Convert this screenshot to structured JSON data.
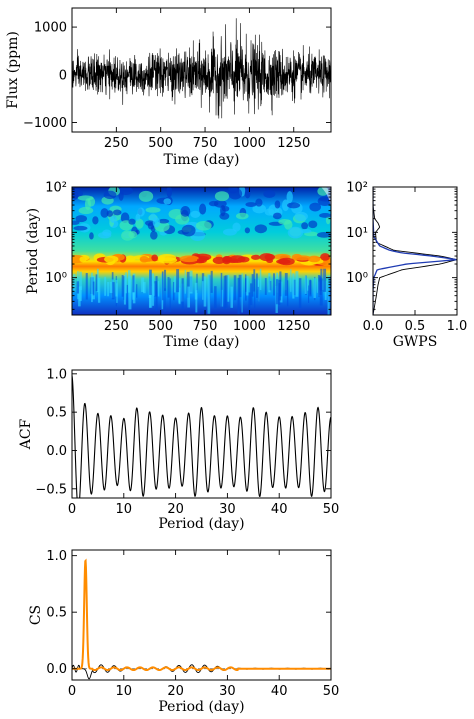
{
  "chart_data": [
    {
      "id": "lightcurve",
      "type": "line",
      "xlabel": "Time (day)",
      "ylabel": "Flux (ppm)",
      "xlim": [
        0,
        1460
      ],
      "ylim": [
        -1200,
        1400
      ],
      "xticks": [
        250,
        500,
        750,
        1000,
        1250
      ],
      "yticks": [
        -1000,
        0,
        1000
      ],
      "ytick_labels": [
        "−1000",
        "0",
        "1000"
      ],
      "series": [
        {
          "color": "#000000",
          "description_values": "dense noisy flux time series, amplitude ~±500 ppm, peaks up to ~1250 ppm near 950 d",
          "x": [
            0,
            100,
            200,
            300,
            400,
            500,
            600,
            700,
            800,
            900,
            950,
            1000,
            1100,
            1200,
            1300,
            1400,
            1460
          ],
          "amplitude": [
            420,
            450,
            480,
            460,
            520,
            560,
            540,
            650,
            800,
            900,
            1000,
            850,
            700,
            600,
            520,
            480,
            450
          ]
        }
      ]
    },
    {
      "id": "wavelet",
      "type": "heatmap",
      "xlabel": "Time (day)",
      "ylabel": "Period (day)",
      "xlim": [
        0,
        1460
      ],
      "ylim": [
        0.15,
        100
      ],
      "yscale": "log",
      "xticks": [
        250,
        500,
        750,
        1000,
        1250
      ],
      "yticks": [
        1,
        10,
        100
      ],
      "ytick_labels": [
        "10⁰",
        "10¹",
        "10²"
      ],
      "colormap": "jet",
      "dominant_period": 2.5
    },
    {
      "id": "gwps",
      "type": "line",
      "xlabel": "GWPS",
      "xlim": [
        0,
        1.0
      ],
      "ylim": [
        0.15,
        100
      ],
      "yscale": "log",
      "xticks": [
        0,
        0.5,
        1.0
      ],
      "xtick_labels": [
        "0.0",
        "0.5",
        "1.0"
      ],
      "yticks": [
        1,
        10,
        100
      ],
      "ytick_labels": [
        "10⁰",
        "10¹",
        "10²"
      ],
      "series": [
        {
          "color": "#000000",
          "period": [
            0.15,
            0.4,
            0.7,
            1.0,
            1.5,
            2.0,
            2.5,
            3.0,
            4.0,
            6.0,
            10,
            13,
            16,
            20,
            40,
            100
          ],
          "power": [
            0.0,
            0.04,
            0.06,
            0.08,
            0.35,
            0.8,
            1.0,
            0.8,
            0.25,
            0.04,
            0.03,
            0.08,
            0.06,
            0.02,
            0.0,
            0.0
          ]
        },
        {
          "color": "#1f3bb3",
          "period": [
            0.15,
            0.5,
            1.0,
            1.5,
            2.0,
            2.5,
            3.0,
            3.5,
            4.0,
            5.0,
            8.0,
            20,
            100
          ],
          "power": [
            0.0,
            0.0,
            0.01,
            0.05,
            0.4,
            1.0,
            0.7,
            0.35,
            0.2,
            0.08,
            0.01,
            0.0,
            0.0
          ]
        }
      ]
    },
    {
      "id": "acf",
      "type": "line",
      "xlabel": "Period (day)",
      "ylabel": "ACF",
      "xlim": [
        0,
        50
      ],
      "ylim": [
        -0.62,
        1.05
      ],
      "xticks": [
        0,
        10,
        20,
        30,
        40,
        50
      ],
      "yticks": [
        -0.5,
        0.0,
        0.5,
        1.0
      ],
      "ytick_labels": [
        "−0.5",
        "0.0",
        "0.5",
        "1.0"
      ],
      "oscillation_period": 2.5,
      "series": [
        {
          "color": "#000000",
          "description_values": "damped-then-steady oscillation with period ~2.5 d, peaks ~0.45–0.6, troughs ~−0.4 to −0.55"
        }
      ]
    },
    {
      "id": "cs",
      "type": "line",
      "xlabel": "Period (day)",
      "ylabel": "CS",
      "xlim": [
        0,
        50
      ],
      "ylim": [
        -0.1,
        1.05
      ],
      "xticks": [
        0,
        10,
        20,
        30,
        40,
        50
      ],
      "yticks": [
        0.0,
        0.5,
        1.0
      ],
      "ytick_labels": [
        "0.0",
        "0.5",
        "1.0"
      ],
      "series": [
        {
          "color": "#000000",
          "description_values": "small ripple around 0 with dip near 3 d"
        },
        {
          "color": "#ff8c00",
          "peak_x": 2.6,
          "peak_y": 0.96
        }
      ]
    }
  ]
}
